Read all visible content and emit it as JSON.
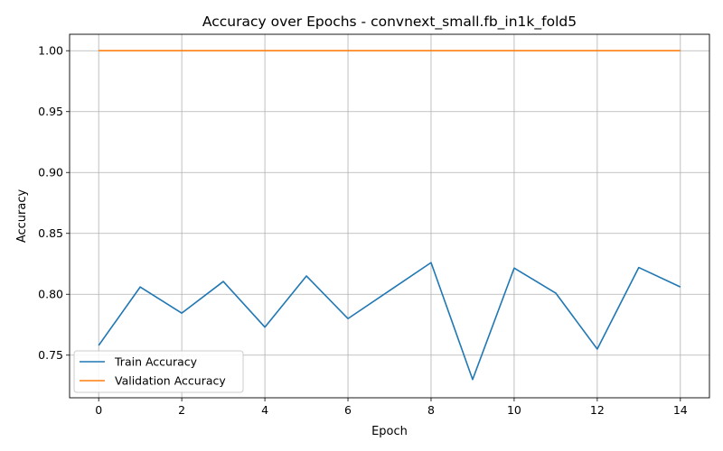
{
  "chart_data": {
    "type": "line",
    "title": "Accuracy over Epochs - convnext_small.fb_in1k_fold5",
    "xlabel": "Epoch",
    "ylabel": "Accuracy",
    "x": [
      0,
      1,
      2,
      3,
      4,
      5,
      6,
      7,
      8,
      9,
      10,
      11,
      12,
      13,
      14
    ],
    "xlim": [
      -0.7,
      14.7
    ],
    "ylim": [
      0.715,
      1.0135
    ],
    "xticks": [
      0,
      2,
      4,
      6,
      8,
      10,
      12,
      14
    ],
    "xtick_labels": [
      "0",
      "2",
      "4",
      "6",
      "8",
      "10",
      "12",
      "14"
    ],
    "yticks": [
      0.75,
      0.8,
      0.85,
      0.9,
      0.95,
      1.0
    ],
    "ytick_labels": [
      "0.75",
      "0.80",
      "0.85",
      "0.90",
      "0.95",
      "1.00"
    ],
    "grid": true,
    "legend_position": "lower-left",
    "series": [
      {
        "name": "Train Accuracy",
        "color": "#1f77b4",
        "values": [
          0.758,
          0.806,
          0.7845,
          0.8105,
          0.773,
          0.815,
          0.78,
          0.803,
          0.826,
          0.73,
          0.8215,
          0.801,
          0.755,
          0.822,
          0.806
        ]
      },
      {
        "name": "Validation Accuracy",
        "color": "#ff7f0e",
        "values": [
          1.0,
          1.0,
          1.0,
          1.0,
          1.0,
          1.0,
          1.0,
          1.0,
          1.0,
          1.0,
          1.0,
          1.0,
          1.0,
          1.0,
          1.0
        ]
      }
    ]
  }
}
